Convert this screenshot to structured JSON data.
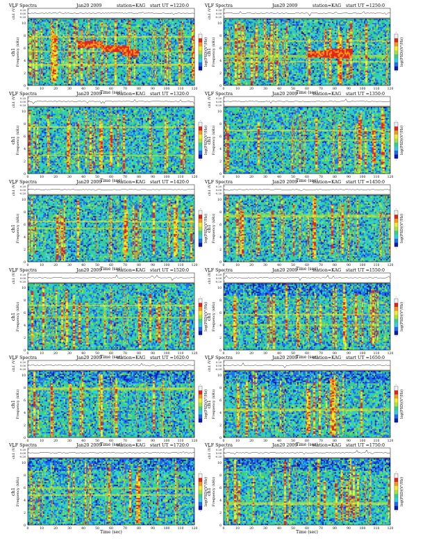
{
  "page": {
    "background": "#ffffff"
  },
  "colorbar": {
    "label": "log(PSD)(V²/Hz)",
    "colors": [
      "#0a1bb0",
      "#1f6cf0",
      "#2fd0e8",
      "#37cf8c",
      "#a8e43a",
      "#f4ee2e",
      "#f29a1d",
      "#e0261c",
      "#f2f2f2"
    ]
  },
  "chart_data": [
    {
      "type": "heatmap",
      "panel": 1,
      "title": "VLF Spectra",
      "date": "Jan20 2009",
      "station": "station=KAG",
      "start_ut": "start  UT  =1220:0",
      "channel": "ch1",
      "ylabel_top": "ch1 (V)",
      "ylabel": "Frequency  (kHz)",
      "xlabel": "Time  (sec)",
      "xlim": [
        0,
        120
      ],
      "ylim": [
        0,
        10
      ],
      "x_ticks": [
        "0",
        "10",
        "20",
        "30",
        "40",
        "50",
        "60",
        "70",
        "80",
        "90",
        "100",
        "110",
        "120"
      ],
      "y_ticks": [
        "0",
        "2",
        "4",
        "6",
        "8",
        "10"
      ],
      "trace_ticks": [
        "0.20",
        "0.00",
        "-0.20"
      ],
      "colorbar_label": "log(PSD)(V²/Hz)",
      "colorbar_tick": "-"
    },
    {
      "type": "heatmap",
      "panel": 2,
      "title": "VLF Spectra",
      "date": "Jan20 2009",
      "station": "station=KAG",
      "start_ut": "start  UT  =1250:0",
      "channel": "ch1",
      "ylabel_top": "ch1 (V)",
      "ylabel": "Frequency  (kHz)",
      "xlabel": "Time  (sec)",
      "xlim": [
        0,
        120
      ],
      "ylim": [
        0,
        10
      ],
      "x_ticks": [
        "0",
        "10",
        "20",
        "30",
        "40",
        "50",
        "60",
        "70",
        "80",
        "90",
        "100",
        "110",
        "120"
      ],
      "y_ticks": [
        "0",
        "2",
        "4",
        "6",
        "8",
        "10"
      ],
      "trace_ticks": [
        "0.20",
        "0.00",
        "-0.20"
      ],
      "colorbar_label": "log(PSD)(V²/Hz)",
      "colorbar_tick": "-"
    },
    {
      "type": "heatmap",
      "panel": 3,
      "title": "VLF Spectra",
      "date": "Jan20 2009",
      "station": "station=KAG",
      "start_ut": "start  UT  =1320:0",
      "channel": "ch1",
      "ylabel_top": "ch1 (V)",
      "ylabel": "Frequency  (kHz)",
      "xlabel": "Time  (sec)",
      "xlim": [
        0,
        120
      ],
      "ylim": [
        0,
        10
      ],
      "x_ticks": [
        "0",
        "10",
        "20",
        "30",
        "40",
        "50",
        "60",
        "70",
        "80",
        "90",
        "100",
        "110",
        "120"
      ],
      "y_ticks": [
        "0",
        "2",
        "4",
        "6",
        "8",
        "10"
      ],
      "trace_ticks": [
        "0.20",
        "0.00",
        "-0.20"
      ],
      "colorbar_label": "log(PSD)(V²/Hz)",
      "colorbar_tick": "-"
    },
    {
      "type": "heatmap",
      "panel": 4,
      "title": "VLF Spectra",
      "date": "Jan20 2009",
      "station": "station=KAG",
      "start_ut": "start  UT  =1350:0",
      "channel": "ch1",
      "ylabel_top": "ch1 (V)",
      "ylabel": "Frequency  (kHz)",
      "xlabel": "Time  (sec)",
      "xlim": [
        0,
        120
      ],
      "ylim": [
        0,
        10
      ],
      "x_ticks": [
        "0",
        "10",
        "20",
        "30",
        "40",
        "50",
        "60",
        "70",
        "80",
        "90",
        "100",
        "110",
        "120"
      ],
      "y_ticks": [
        "0",
        "2",
        "4",
        "6",
        "8",
        "10"
      ],
      "trace_ticks": [
        "0.20",
        "0.00",
        "-0.20"
      ],
      "colorbar_label": "log(PSD)(V²/Hz)",
      "colorbar_tick": "-"
    },
    {
      "type": "heatmap",
      "panel": 5,
      "title": "VLF Spectra",
      "date": "Jan20 2009",
      "station": "station=KAG",
      "start_ut": "start  UT  =1420:0",
      "channel": "ch1",
      "ylabel_top": "ch1 (V)",
      "ylabel": "Frequency  (kHz)",
      "xlabel": "Time  (sec)",
      "xlim": [
        0,
        120
      ],
      "ylim": [
        0,
        10
      ],
      "x_ticks": [
        "0",
        "10",
        "20",
        "30",
        "40",
        "50",
        "60",
        "70",
        "80",
        "90",
        "100",
        "110",
        "120"
      ],
      "y_ticks": [
        "0",
        "2",
        "4",
        "6",
        "8",
        "10"
      ],
      "trace_ticks": [
        "0.20",
        "0.00",
        "-0.20"
      ],
      "colorbar_label": "log(PSD)(V²/Hz)",
      "colorbar_tick": "-"
    },
    {
      "type": "heatmap",
      "panel": 6,
      "title": "VLF Spectra",
      "date": "Jan20 2009",
      "station": "station=KAG",
      "start_ut": "start  UT  =1450:0",
      "channel": "ch1",
      "ylabel_top": "ch1 (V)",
      "ylabel": "Frequency  (kHz)",
      "xlabel": "Time  (sec)",
      "xlim": [
        0,
        120
      ],
      "ylim": [
        0,
        10
      ],
      "x_ticks": [
        "0",
        "10",
        "20",
        "30",
        "40",
        "50",
        "60",
        "70",
        "80",
        "90",
        "100",
        "110",
        "120"
      ],
      "y_ticks": [
        "0",
        "2",
        "4",
        "6",
        "8",
        "10"
      ],
      "trace_ticks": [
        "0.20",
        "0.00",
        "-0.20"
      ],
      "colorbar_label": "log(PSD)(V²/Hz)",
      "colorbar_tick": "-"
    },
    {
      "type": "heatmap",
      "panel": 7,
      "title": "VLF Spectra",
      "date": "Jan20 2009",
      "station": "station=KAG",
      "start_ut": "start  UT  =1520:0",
      "channel": "ch1",
      "ylabel_top": "ch1 (V)",
      "ylabel": "Frequency  (kHz)",
      "xlabel": "Time  (sec)",
      "xlim": [
        0,
        120
      ],
      "ylim": [
        0,
        10
      ],
      "x_ticks": [
        "0",
        "10",
        "20",
        "30",
        "40",
        "50",
        "60",
        "70",
        "80",
        "90",
        "100",
        "110",
        "120"
      ],
      "y_ticks": [
        "0",
        "2",
        "4",
        "6",
        "8",
        "10"
      ],
      "trace_ticks": [
        "0.20",
        "0.00",
        "-0.20"
      ],
      "colorbar_label": "log(PSD)(V²/Hz)",
      "colorbar_tick": "-"
    },
    {
      "type": "heatmap",
      "panel": 8,
      "title": "VLF Spectra",
      "date": "Jan20 2009",
      "station": "station=KAG",
      "start_ut": "start  UT  =1550:0",
      "channel": "ch1",
      "ylabel_top": "ch1 (V)",
      "ylabel": "Frequency  (kHz)",
      "xlabel": "Time  (sec)",
      "xlim": [
        0,
        120
      ],
      "ylim": [
        0,
        10
      ],
      "x_ticks": [
        "0",
        "10",
        "20",
        "30",
        "40",
        "50",
        "60",
        "70",
        "80",
        "90",
        "100",
        "110",
        "120"
      ],
      "y_ticks": [
        "0",
        "2",
        "4",
        "6",
        "8",
        "10"
      ],
      "trace_ticks": [
        "0.20",
        "0.00",
        "-0.20"
      ],
      "colorbar_label": "log(PSD)(V²/Hz)",
      "colorbar_tick": "-"
    },
    {
      "type": "heatmap",
      "panel": 9,
      "title": "VLF Spectra",
      "date": "Jan20 2009",
      "station": "station=KAG",
      "start_ut": "start  UT  =1620:0",
      "channel": "ch1",
      "ylabel_top": "ch1 (V)",
      "ylabel": "Frequency  (kHz)",
      "xlabel": "Time  (sec)",
      "xlim": [
        0,
        120
      ],
      "ylim": [
        0,
        10
      ],
      "x_ticks": [
        "0",
        "10",
        "20",
        "30",
        "40",
        "50",
        "60",
        "70",
        "80",
        "90",
        "100",
        "110",
        "120"
      ],
      "y_ticks": [
        "0",
        "2",
        "4",
        "6",
        "8",
        "10"
      ],
      "trace_ticks": [
        "0.20",
        "0.00",
        "-0.20"
      ],
      "colorbar_label": "log(PSD)(V²/Hz)",
      "colorbar_tick": "-"
    },
    {
      "type": "heatmap",
      "panel": 10,
      "title": "VLF Spectra",
      "date": "Jan20 2009",
      "station": "station=KAG",
      "start_ut": "start  UT  =1650:0",
      "channel": "ch1",
      "ylabel_top": "ch1 (V)",
      "ylabel": "Frequency  (kHz)",
      "xlabel": "Time  (sec)",
      "xlim": [
        0,
        120
      ],
      "ylim": [
        0,
        10
      ],
      "x_ticks": [
        "0",
        "10",
        "20",
        "30",
        "40",
        "50",
        "60",
        "70",
        "80",
        "90",
        "100",
        "110",
        "120"
      ],
      "y_ticks": [
        "0",
        "2",
        "4",
        "6",
        "8",
        "10"
      ],
      "trace_ticks": [
        "0.20",
        "0.00",
        "-0.20"
      ],
      "colorbar_label": "log(PSD)(V²/Hz)",
      "colorbar_tick": "-"
    },
    {
      "type": "heatmap",
      "panel": 11,
      "title": "VLF Spectra",
      "date": "Jan20 2009",
      "station": "station=KAG",
      "start_ut": "start  UT  =1720:0",
      "channel": "ch1",
      "ylabel_top": "ch1 (V)",
      "ylabel": "Frequency  (kHz)",
      "xlabel": "Time  (sec)",
      "xlim": [
        0,
        120
      ],
      "ylim": [
        0,
        10
      ],
      "x_ticks": [
        "0",
        "10",
        "20",
        "30",
        "40",
        "50",
        "60",
        "70",
        "80",
        "90",
        "100",
        "110",
        "120"
      ],
      "y_ticks": [
        "0",
        "2",
        "4",
        "6",
        "8",
        "10"
      ],
      "trace_ticks": [
        "0.20",
        "0.00",
        "-0.20"
      ],
      "colorbar_label": "log(PSD)(V²/Hz)",
      "colorbar_tick": "-"
    },
    {
      "type": "heatmap",
      "panel": 12,
      "title": "VLF Spectra",
      "date": "Jan20 2009",
      "station": "station=KAG",
      "start_ut": "start  UT  =1750:0",
      "channel": "ch1",
      "ylabel_top": "ch1 (V)",
      "ylabel": "Frequency  (kHz)",
      "xlabel": "Time  (sec)",
      "xlim": [
        0,
        120
      ],
      "ylim": [
        0,
        10
      ],
      "x_ticks": [
        "0",
        "10",
        "20",
        "30",
        "40",
        "50",
        "60",
        "70",
        "80",
        "90",
        "100",
        "110",
        "120"
      ],
      "y_ticks": [
        "0",
        "2",
        "4",
        "6",
        "8",
        "10"
      ],
      "trace_ticks": [
        "0.20",
        "0.00",
        "-0.20"
      ],
      "colorbar_label": "log(PSD)(V²/Hz)",
      "colorbar_tick": "-"
    }
  ]
}
